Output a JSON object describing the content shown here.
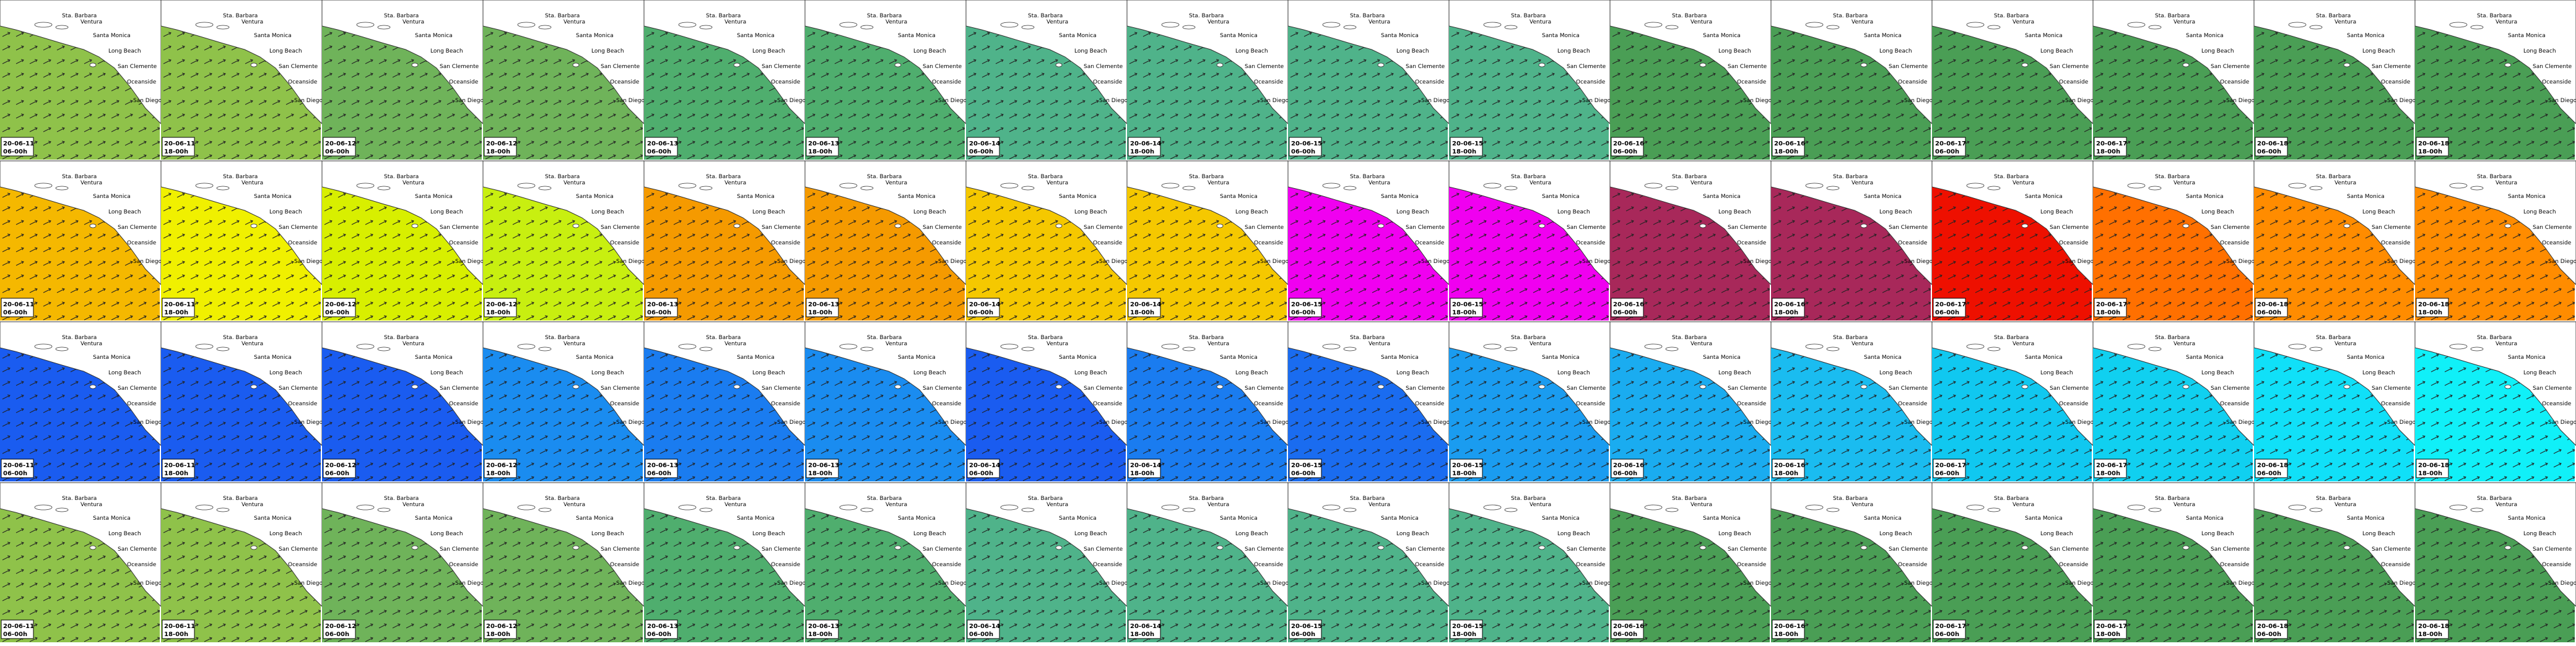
{
  "dates": [
    "20-06-11",
    "20-06-11",
    "20-06-12",
    "20-06-12",
    "20-06-13",
    "20-06-13",
    "20-06-14",
    "20-06-14",
    "20-06-15",
    "20-06-15",
    "20-06-16",
    "20-06-16",
    "20-06-17",
    "20-06-17",
    "20-06-18",
    "20-06-18"
  ],
  "times": [
    "06-00h",
    "18-00h",
    "06-00h",
    "18-00h",
    "06-00h",
    "18-00h",
    "06-00h",
    "18-00h",
    "06-00h",
    "18-00h",
    "06-00h",
    "18-00h",
    "06-00h",
    "18-00h",
    "06-00h",
    "18-00h"
  ],
  "places": [
    "Sta. Barbara",
    "Ventura",
    "Santa Monica",
    "Long Beach",
    "San Clemente",
    "Oceanside",
    "San Diego"
  ],
  "rows": [
    {
      "colors": [
        "#8fc24a",
        "#8fc24a",
        "#6fb35a",
        "#6fb35a",
        "#4fae6e",
        "#4fae6e",
        "#4fb38a",
        "#4fb38a",
        "#4fb38a",
        "#4fb38a",
        "#4a9e55",
        "#4a9e55",
        "#4a9e55",
        "#4a9e55",
        "#4a9e55",
        "#4a9e55"
      ]
    },
    {
      "colors": [
        "#f5b800",
        "#f0f000",
        "#d8ef00",
        "#c8ef10",
        "#f59a00",
        "#f59a00",
        "#f5c800",
        "#f5c800",
        "#f000f0",
        "#f000f0",
        "#a8285a",
        "#a8285a",
        "#ee1000",
        "#ff7000",
        "#ff8c00",
        "#ff8c00"
      ]
    },
    {
      "colors": [
        "#1a5cf0",
        "#1a5cf0",
        "#1a5cf0",
        "#1a8cf0",
        "#1a7cf0",
        "#1a8cf0",
        "#1a5cf0",
        "#1a7cf0",
        "#1a6cf0",
        "#1a9cf0",
        "#1aacf0",
        "#1abcf0",
        "#10c8f0",
        "#10d0f0",
        "#10e0f8",
        "#10f0f8"
      ]
    },
    {
      "colors": [
        "#8fc24a",
        "#8fc24a",
        "#6fb35a",
        "#6fb35a",
        "#4fae6e",
        "#4fae6e",
        "#4fb38a",
        "#4fb38a",
        "#4fb38a",
        "#4fb38a",
        "#4a9e55",
        "#4a9e55",
        "#4a9e55",
        "#4a9e55",
        "#4a9e55",
        "#4a9e55"
      ]
    }
  ]
}
